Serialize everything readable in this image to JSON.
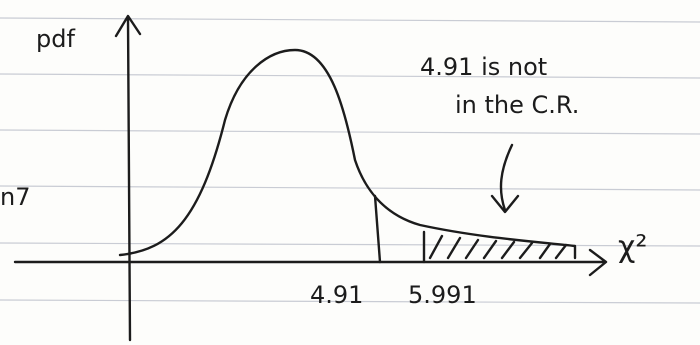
{
  "labels": {
    "y_axis": "pdf",
    "x_axis": "χ²",
    "left_margin": "n7",
    "test_statistic": "4.91",
    "critical_value": "5.991"
  },
  "annotation": [
    "4.91 is not",
    "in the C.R."
  ]
}
